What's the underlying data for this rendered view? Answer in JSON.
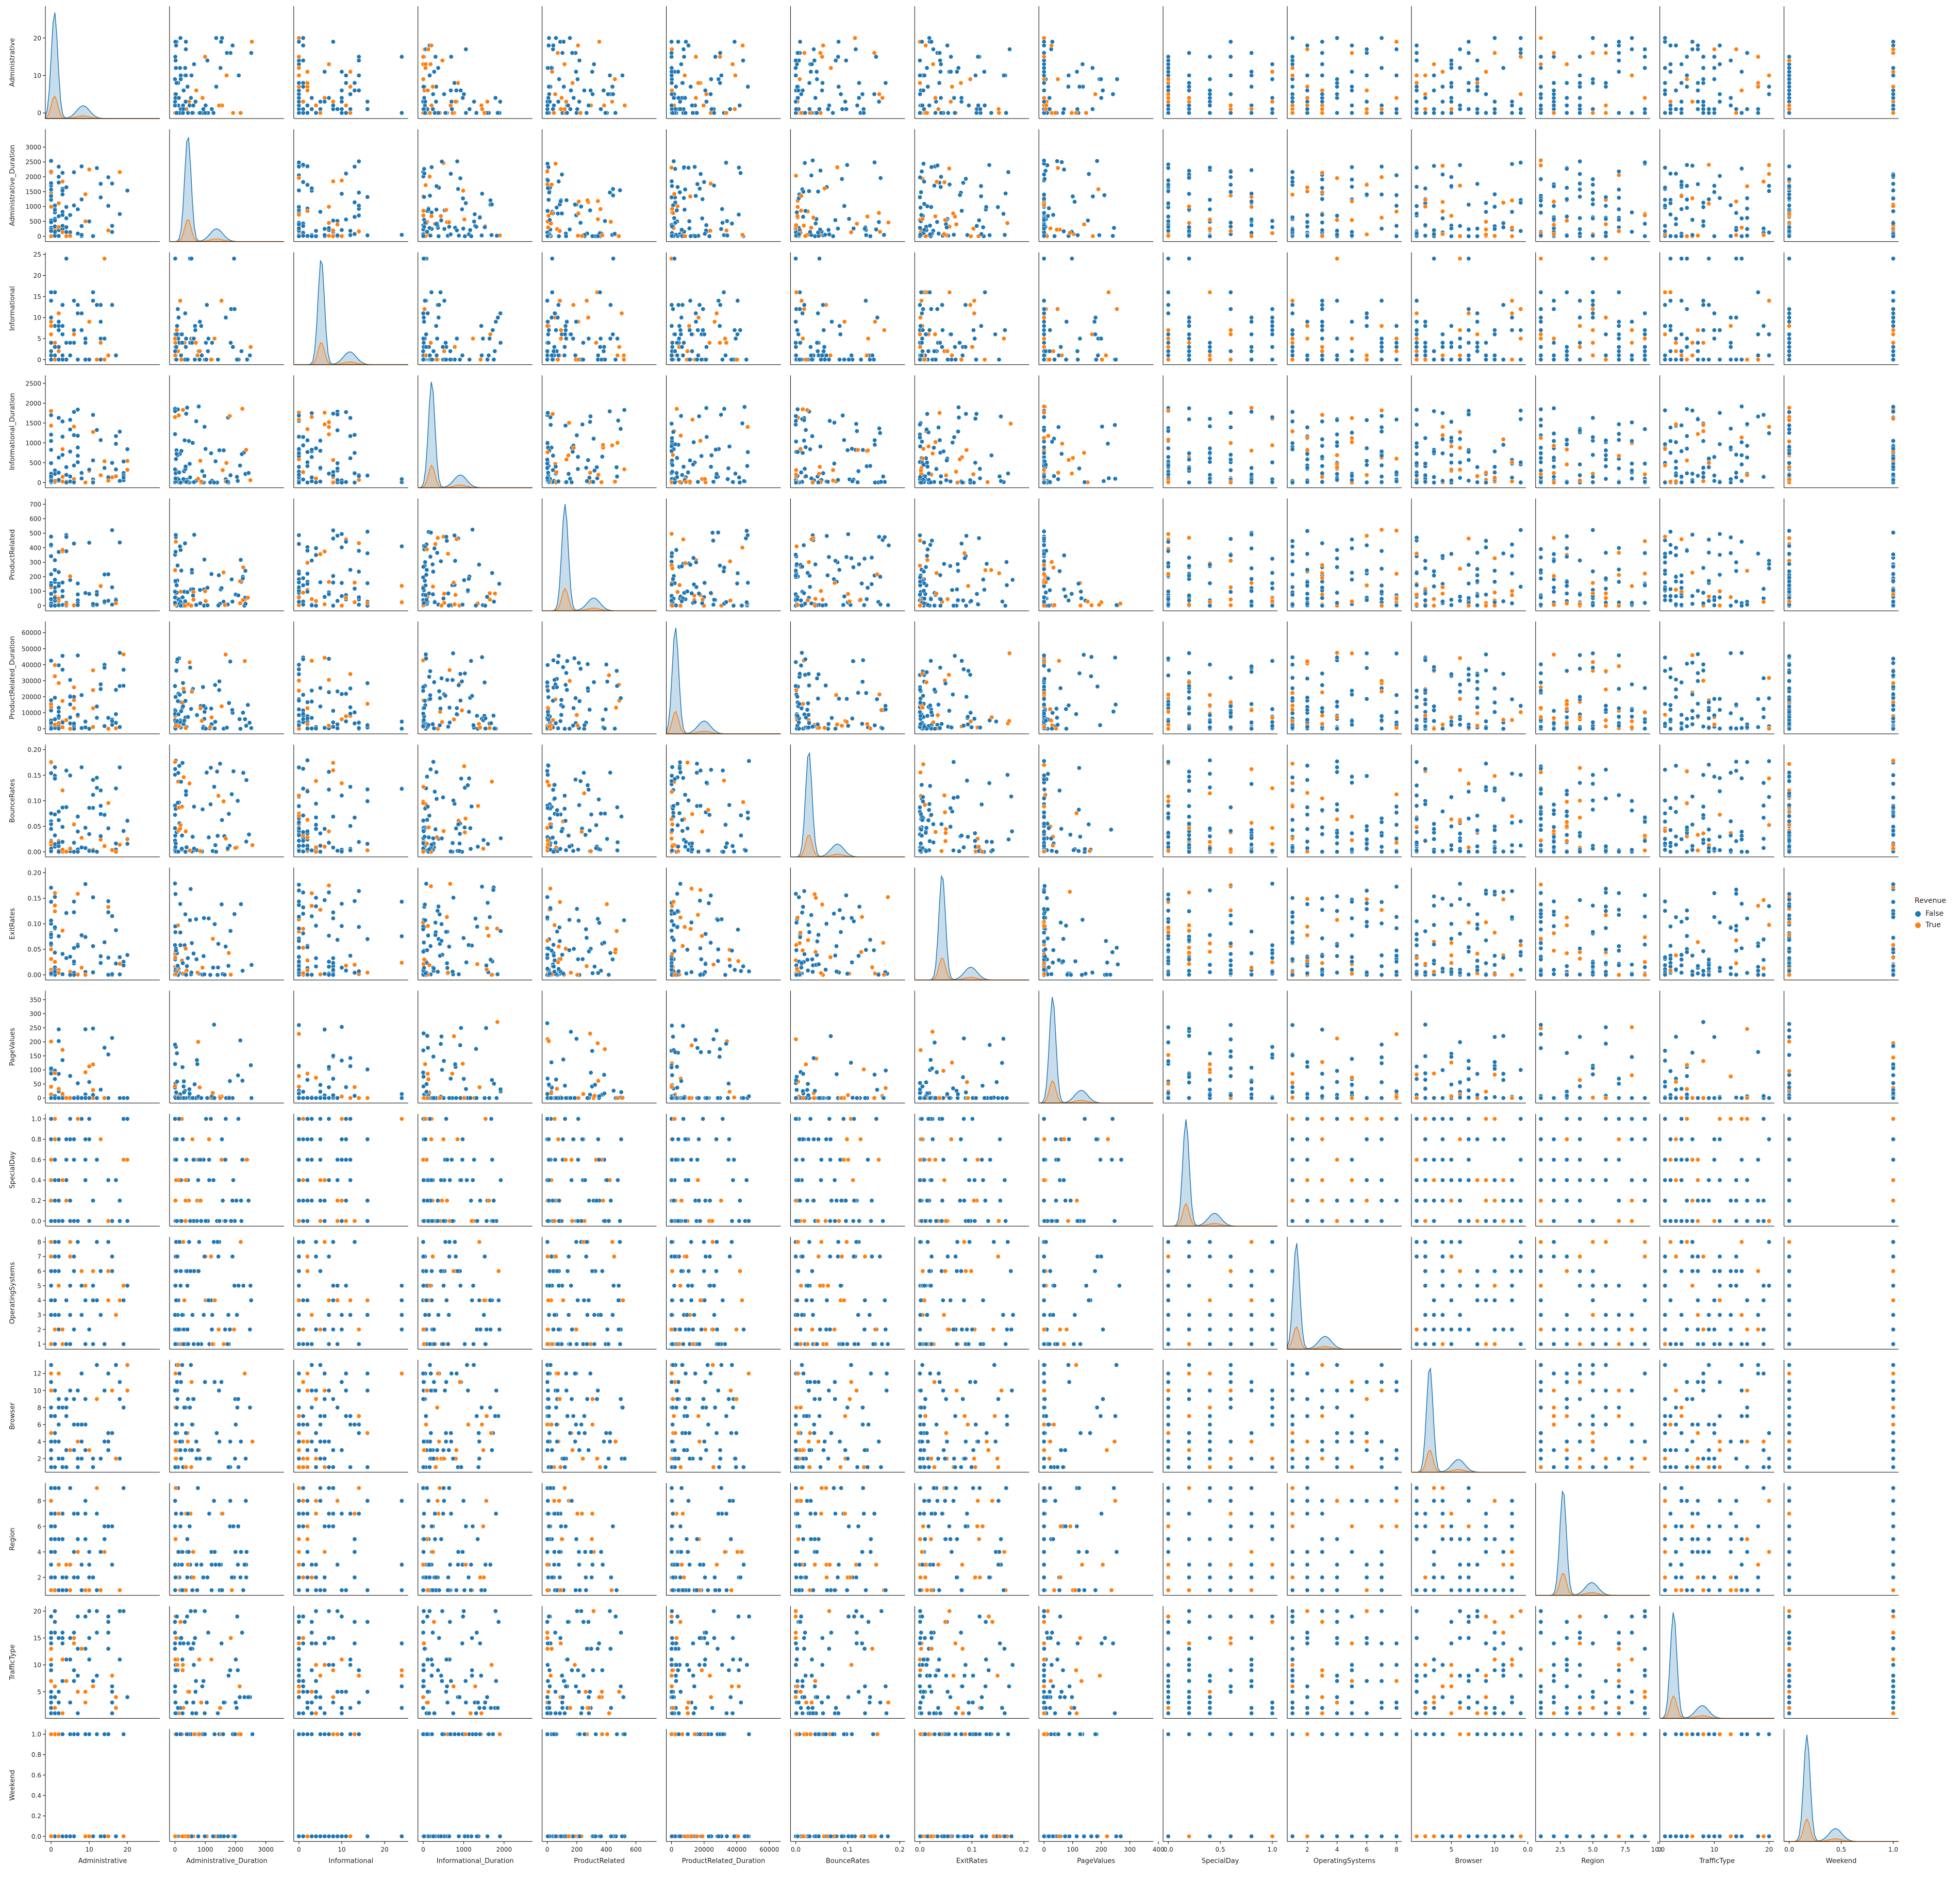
{
  "chart_data": {
    "type": "scatter",
    "kind": "pairplot",
    "diag_kind": "kde",
    "hue": "Revenue",
    "variables": [
      "Administrative",
      "Administrative_Duration",
      "Informational",
      "Informational_Duration",
      "ProductRelated",
      "ProductRelated_Duration",
      "BounceRates",
      "ExitRates",
      "PageValues",
      "SpecialDay",
      "OperatingSystems",
      "Browser",
      "Region",
      "TrafficType",
      "Weekend"
    ],
    "ranges": {
      "Administrative": [
        -1.5,
        28.5
      ],
      "Administrative_Duration": [
        -180,
        3600
      ],
      "Informational": [
        -1.2,
        25.5
      ],
      "Informational_Duration": [
        -130,
        2700
      ],
      "ProductRelated": [
        -35,
        740
      ],
      "ProductRelated_Duration": [
        -3200,
        67000
      ],
      "BounceRates": [
        -0.01,
        0.21
      ],
      "ExitRates": [
        -0.01,
        0.21
      ],
      "PageValues": [
        -18,
        382
      ],
      "SpecialDay": [
        -0.05,
        1.05
      ],
      "OperatingSystems": [
        0.65,
        8.35
      ],
      "Browser": [
        0.4,
        13.6
      ],
      "Region": [
        0.6,
        9.4
      ],
      "TrafficType": [
        0.05,
        20.95
      ],
      "Weekend": [
        -0.05,
        1.05
      ]
    },
    "ticks": {
      "Administrative": [
        "0",
        "10",
        "20"
      ],
      "Administrative_Duration": [
        "0",
        "500",
        "1000",
        "1500",
        "2000",
        "2500",
        "3000"
      ],
      "Informational": [
        "0",
        "5",
        "10",
        "15",
        "20",
        "25"
      ],
      "Informational_Duration": [
        "0",
        "500",
        "1000",
        "1500",
        "2000",
        "2500"
      ],
      "ProductRelated": [
        "0",
        "100",
        "200",
        "300",
        "400",
        "500",
        "600",
        "700"
      ],
      "ProductRelated_Duration": [
        "0",
        "10000",
        "20000",
        "30000",
        "40000",
        "50000",
        "60000"
      ],
      "BounceRates": [
        "0.00",
        "0.05",
        "0.10",
        "0.15",
        "0.20"
      ],
      "ExitRates": [
        "0.00",
        "0.05",
        "0.10",
        "0.15",
        "0.20"
      ],
      "PageValues": [
        "0",
        "50",
        "100",
        "150",
        "200",
        "250",
        "300",
        "350"
      ],
      "SpecialDay": [
        "0.0",
        "0.2",
        "0.4",
        "0.6",
        "0.8",
        "1.0"
      ],
      "OperatingSystems": [
        "1",
        "2",
        "3",
        "4",
        "5",
        "6",
        "7",
        "8"
      ],
      "Browser": [
        "2",
        "4",
        "6",
        "8",
        "10",
        "12"
      ],
      "Region": [
        "2",
        "4",
        "6",
        "8"
      ],
      "TrafficType": [
        "5",
        "10",
        "15",
        "20"
      ],
      "Weekend": [
        "0.0",
        "0.2",
        "0.4",
        "0.6",
        "0.8",
        "1.0"
      ]
    },
    "xticks": {
      "Administrative": [
        "0",
        "10",
        "20"
      ],
      "Administrative_Duration": [
        "0",
        "1000",
        "2000",
        "3000"
      ],
      "Informational": [
        "0",
        "10",
        "20"
      ],
      "Informational_Duration": [
        "0",
        "1000",
        "2000"
      ],
      "ProductRelated": [
        "0",
        "200",
        "400",
        "600"
      ],
      "ProductRelated_Duration": [
        "0",
        "20000",
        "40000",
        "60000"
      ],
      "BounceRates": [
        "0.0",
        "0.1",
        "0.2"
      ],
      "ExitRates": [
        "0.0",
        "0.1",
        "0.2"
      ],
      "PageValues": [
        "0",
        "100",
        "200",
        "300",
        "400"
      ],
      "SpecialDay": [
        "0.0",
        "0.5",
        "1.0"
      ],
      "OperatingSystems": [
        "2",
        "4",
        "6",
        "8"
      ],
      "Browser": [
        "5",
        "10"
      ],
      "Region": [
        "0.0",
        "2.5",
        "5.0",
        "7.5",
        "10.0"
      ],
      "TrafficType": [
        "0",
        "10",
        "20"
      ],
      "Weekend": [
        "0.0",
        "0.5",
        "1.0"
      ]
    },
    "series": [
      {
        "name": "False",
        "color": "#1f77b4"
      },
      {
        "name": "True",
        "color": "#ff7f0e"
      }
    ],
    "legend": {
      "title": "Revenue",
      "position": "right"
    },
    "grid": false
  }
}
